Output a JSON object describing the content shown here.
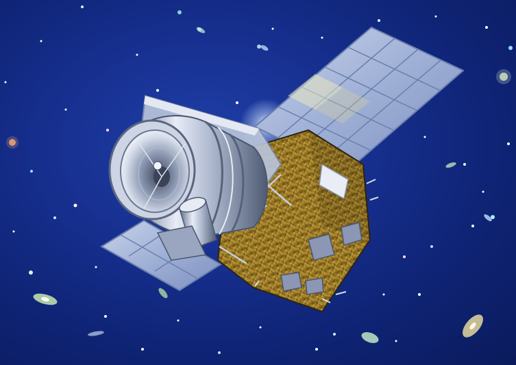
{
  "scene": {
    "subject": "satellite-telescope",
    "colors": {
      "space_light": "#1f3fa8",
      "space_dark": "#0a1a5c",
      "panel_cell": "#a9b7d8",
      "panel_frame": "#6a7fae",
      "tube_light": "#e7ecf6",
      "tube_mid": "#aeb9cf",
      "tube_dark": "#5d6b86",
      "bus_gold": "#8a6a1c",
      "bus_gold_light": "#d9b44a",
      "bus_dark": "#2c2410"
    }
  }
}
